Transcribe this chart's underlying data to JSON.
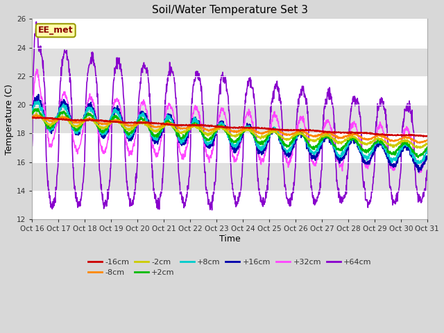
{
  "title": "Soil/Water Temperature Set 3",
  "xlabel": "Time",
  "ylabel": "Temperature (C)",
  "ylim": [
    12,
    26
  ],
  "yticks": [
    12,
    14,
    16,
    18,
    20,
    22,
    24,
    26
  ],
  "xtick_labels": [
    "Oct 16",
    "Oct 17",
    "Oct 18",
    "Oct 19",
    "Oct 20",
    "Oct 21",
    "Oct 22",
    "Oct 23",
    "Oct 24",
    "Oct 25",
    "Oct 26",
    "Oct 27",
    "Oct 28",
    "Oct 29",
    "Oct 30",
    "Oct 31"
  ],
  "annotation_text": "EE_met",
  "series": {
    "-16cm": {
      "color": "#cc0000",
      "lw": 1.5
    },
    "-8cm": {
      "color": "#ff8800",
      "lw": 1.5
    },
    "-2cm": {
      "color": "#cccc00",
      "lw": 1.5
    },
    "+2cm": {
      "color": "#00bb00",
      "lw": 1.5
    },
    "+8cm": {
      "color": "#00cccc",
      "lw": 1.5
    },
    "+16cm": {
      "color": "#0000aa",
      "lw": 1.5
    },
    "+32cm": {
      "color": "#ff44ff",
      "lw": 1.2
    },
    "+64cm": {
      "color": "#8800cc",
      "lw": 1.2
    }
  },
  "bg_color": "#d8d8d8",
  "plot_bg_color": "#ffffff",
  "band_color": "#e0e0e0",
  "n_days": 15,
  "points_per_day": 96
}
